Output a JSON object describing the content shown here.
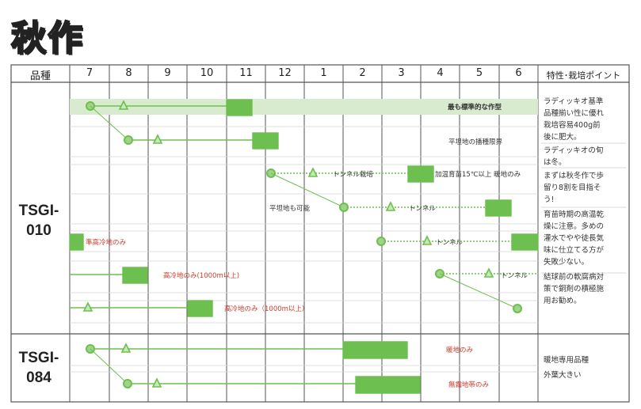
{
  "title": "秋作",
  "header": {
    "variety_col": "品種",
    "notes_col": "特性･栽培ポイント",
    "months": [
      "7",
      "8",
      "9",
      "10",
      "11",
      "12",
      "1",
      "2",
      "3",
      "4",
      "5",
      "6"
    ]
  },
  "varieties": [
    {
      "name_line1": "TSGI-",
      "name_line2": "010",
      "notes": [
        "ラディッキオ基準",
        "品種揃い性に優れ",
        "栽培容易400g前",
        "後に肥大。",
        "ラディッキオの旬",
        "は冬。",
        "まずは秋冬作で歩",
        "留り8割を目指そ",
        "う!",
        "育苗時期の高温乾",
        "燥に注意。多めの",
        "灌水でやや徒長気",
        "味に仕立てる方が",
        "失敗少ない。",
        "結球前の軟腐病対",
        "策で銅剤の積極施",
        "用お勧め。"
      ],
      "labels": {
        "standard": "最も標準的な作型",
        "flat_limit": "平坦地の播種限界",
        "tunnel_seedling": "トンネル栽培",
        "heated": "加温育苗15℃以上 暖地のみ",
        "flat_possible": "平坦地も可能",
        "tunnel2": "トンネル",
        "alpine_cool": "準高冷地のみ",
        "tunnel3": "トンネル",
        "alpine_1000a": "高冷地のみ(1000m以上)",
        "tunnel4": "トンネル",
        "alpine_1000b": "高冷地のみ（1000m以上）"
      }
    },
    {
      "name_line1": "TSGI-",
      "name_line2": "084",
      "notes": [
        "暖地専用品種",
        "外葉大きい"
      ],
      "labels": {
        "warm_only": "暖地のみ",
        "frost_free": "無霜地帯のみ"
      }
    }
  ],
  "colors": {
    "green": "#6dbf4f",
    "light_green": "#cfe6c3",
    "red_text": "#d23a2a"
  }
}
